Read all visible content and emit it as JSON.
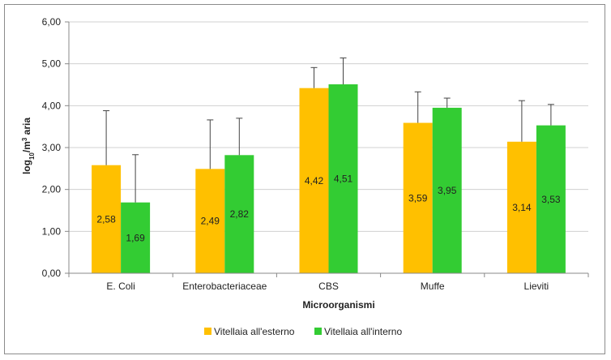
{
  "chart_data": {
    "type": "bar",
    "title": "",
    "xlabel": "Microorganismi",
    "ylabel_parts": [
      "log",
      "10",
      "/m",
      "3",
      " aria"
    ],
    "categories": [
      "E. Coli",
      "Enterobacteriaceae",
      "CBS",
      "Muffe",
      "Lieviti"
    ],
    "ylim": [
      0,
      6
    ],
    "yticks": [
      "0,00",
      "1,00",
      "2,00",
      "3,00",
      "4,00",
      "5,00",
      "6,00"
    ],
    "grid": true,
    "legend_position": "bottom",
    "series": [
      {
        "name": "Vitellaia all'esterno",
        "color": "#FFC000",
        "values": [
          2.58,
          2.49,
          4.42,
          3.59,
          3.14
        ],
        "labels": [
          "2,58",
          "2,49",
          "4,42",
          "3,59",
          "3,14"
        ],
        "error_upper": [
          3.88,
          3.66,
          4.91,
          4.33,
          4.12
        ]
      },
      {
        "name": "Vitellaia all'interno",
        "color": "#33CC33",
        "values": [
          1.69,
          2.82,
          4.51,
          3.95,
          3.53
        ],
        "labels": [
          "1,69",
          "2,82",
          "4,51",
          "3,95",
          "3,53"
        ],
        "error_upper": [
          2.83,
          3.7,
          5.14,
          4.18,
          4.03
        ]
      }
    ]
  }
}
